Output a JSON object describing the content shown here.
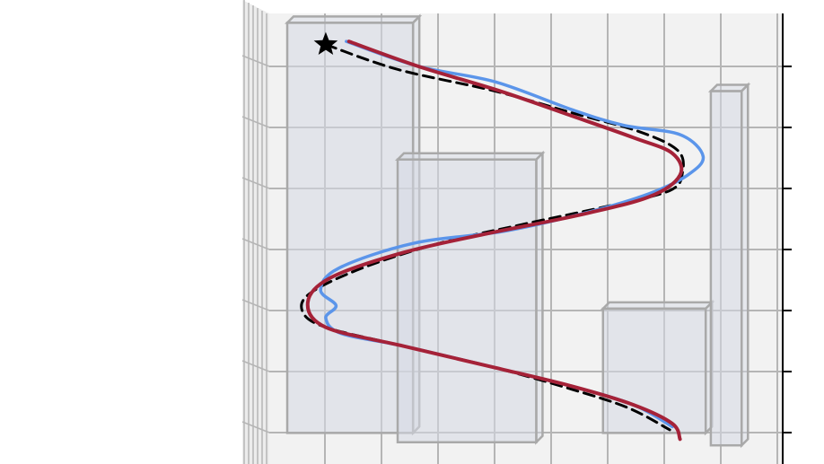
{
  "chart_data": {
    "type": "line",
    "title": "",
    "xlabel": "",
    "ylabel": "",
    "view": "3d-perspective",
    "grid": true,
    "legend": "none",
    "colors": {
      "reference": "#000000",
      "series_blue": "#5b95ea",
      "series_red": "#a52238",
      "obstacle_fill": "#d5d9e4",
      "obstacle_edge": "#a9a9a9",
      "grid": "#b5b5b5",
      "pane": "#f2f2f2"
    },
    "markers": [
      {
        "name": "start",
        "shape": "star",
        "x": 1.1,
        "y": 6.25
      }
    ],
    "obstacles": [
      {
        "name": "obstacle-1",
        "x": [
          0.35,
          2.8
        ],
        "y": [
          0.0,
          6.6
        ]
      },
      {
        "name": "obstacle-2",
        "x": [
          2.5,
          5.2
        ],
        "y": [
          -0.15,
          4.4
        ]
      },
      {
        "name": "obstacle-3",
        "x": [
          6.5,
          8.5
        ],
        "y": [
          0.0,
          2.0
        ]
      },
      {
        "name": "obstacle-4",
        "x": [
          8.6,
          9.2
        ],
        "y": [
          -0.2,
          5.5
        ]
      }
    ],
    "series": [
      {
        "style": "dashed",
        "x": [
          1.1,
          2.5,
          4.4,
          5.9,
          7.2,
          7.95,
          8.05,
          7.8,
          6.6,
          4.9,
          3.3,
          1.8,
          0.8,
          0.65,
          1.1,
          2.6,
          4.4,
          5.9,
          7.0,
          7.8
        ],
        "y": [
          6.25,
          5.85,
          5.5,
          5.15,
          4.85,
          4.55,
          4.2,
          3.9,
          3.65,
          3.35,
          3.05,
          2.65,
          2.25,
          1.95,
          1.7,
          1.4,
          1.05,
          0.7,
          0.4,
          0.05
        ]
      },
      {
        "style": "solid",
        "x": [
          1.5,
          2.9,
          4.4,
          5.9,
          6.9,
          8.0,
          8.45,
          8.15,
          7.4,
          6.2,
          4.6,
          2.8,
          1.35,
          1.0,
          1.3,
          1.1,
          1.4,
          2.6,
          4.4,
          5.9,
          7.1,
          7.85
        ],
        "y": [
          6.3,
          5.9,
          5.65,
          5.2,
          4.95,
          4.8,
          4.45,
          4.15,
          3.85,
          3.55,
          3.25,
          3.05,
          2.65,
          2.3,
          2.05,
          1.85,
          1.6,
          1.4,
          1.05,
          0.75,
          0.45,
          0.1
        ]
      },
      {
        "style": "solid",
        "x": [
          1.55,
          2.9,
          4.5,
          5.9,
          7.1,
          7.85,
          8.0,
          7.4,
          6.0,
          4.2,
          2.6,
          1.2,
          0.75,
          1.1,
          2.6,
          4.4,
          5.9,
          7.1,
          7.85,
          8.0
        ],
        "y": [
          6.3,
          5.9,
          5.5,
          5.1,
          4.75,
          4.5,
          4.15,
          3.8,
          3.5,
          3.2,
          2.9,
          2.5,
          2.1,
          1.7,
          1.4,
          1.05,
          0.75,
          0.45,
          0.15,
          -0.1
        ]
      }
    ]
  }
}
